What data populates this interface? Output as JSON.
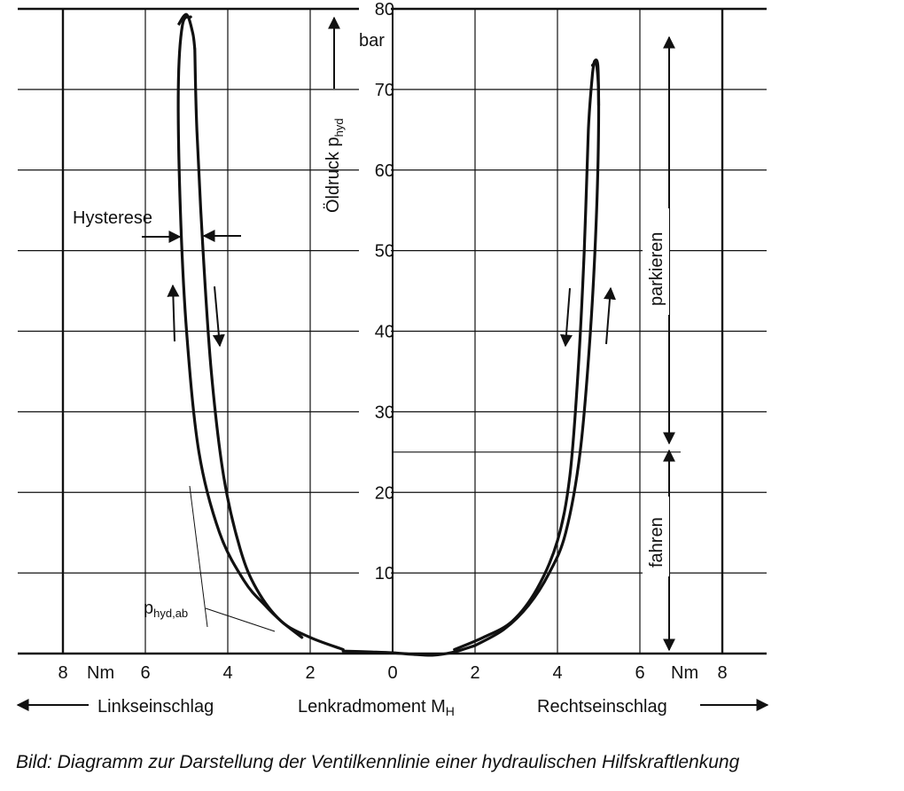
{
  "chart_data": {
    "type": "line",
    "title": "",
    "caption": "Bild: Diagramm zur Darstellung der Ventilkennlinie einer hydraulischen Hilfskraftlenkung",
    "ylabel": "Öldruck p",
    "ylabel_sub": "hyd",
    "yunit": "bar",
    "xunit": "Nm",
    "xlabel": "Lenkradmoment M",
    "xlabel_sub": "H",
    "left_direction": "Linkseinschlag",
    "right_direction": "Rechtseinschlag",
    "xlim": [
      -8,
      8
    ],
    "ylim": [
      0,
      80
    ],
    "x_ticks": [
      {
        "value": -8,
        "label": "8"
      },
      {
        "value": -6,
        "label": "6"
      },
      {
        "value": -4,
        "label": "4"
      },
      {
        "value": -2,
        "label": "2"
      },
      {
        "value": 0,
        "label": "0"
      },
      {
        "value": 2,
        "label": "2"
      },
      {
        "value": 4,
        "label": "4"
      },
      {
        "value": 6,
        "label": "6"
      },
      {
        "value": 8,
        "label": "8"
      }
    ],
    "y_ticks": [
      10,
      20,
      30,
      40,
      50,
      60,
      70,
      80
    ],
    "grid": true,
    "annotations": {
      "hysteresis": "Hysterese",
      "p_return": "p",
      "p_return_sub": "hyd,ab",
      "zone_driving": "fahren",
      "zone_parking": "parkieren",
      "zone_boundary": 25
    },
    "series": [
      {
        "branch": "left-rising",
        "x": [
          -2.2,
          -2.7,
          -3.1,
          -3.6,
          -4.2,
          -4.7,
          -5.0,
          -5.15,
          -5.2,
          -5.1,
          -4.9
        ],
        "y": [
          2,
          4,
          6,
          9,
          15,
          25,
          40,
          55,
          70,
          78,
          79
        ]
      },
      {
        "branch": "left-falling",
        "x": [
          -4.8,
          -4.75,
          -4.6,
          -4.4,
          -4.1,
          -3.7,
          -3.3,
          -2.7,
          -2.0,
          -1.2
        ],
        "y": [
          75,
          65,
          50,
          35,
          22,
          13,
          8,
          4,
          2,
          0.5
        ]
      },
      {
        "branch": "centre",
        "x": [
          -1.2,
          -0.5,
          0,
          0.5,
          1.0,
          1.5,
          2.0
        ],
        "y": [
          0.3,
          0.2,
          0.1,
          -0.1,
          -0.2,
          0.2,
          1.0
        ]
      },
      {
        "branch": "right-falling",
        "x": [
          1.5,
          2.2,
          2.9,
          3.5,
          4.0,
          4.3,
          4.5,
          4.65,
          4.75,
          4.85
        ],
        "y": [
          0.5,
          2,
          4,
          8,
          14,
          22,
          35,
          50,
          65,
          72
        ]
      },
      {
        "branch": "right-rising",
        "x": [
          2.0,
          2.7,
          3.3,
          3.8,
          4.2,
          4.55,
          4.8,
          4.95,
          5.0,
          4.95,
          4.85
        ],
        "y": [
          1,
          3,
          6,
          10,
          15,
          25,
          40,
          55,
          68,
          73,
          73
        ]
      }
    ]
  }
}
